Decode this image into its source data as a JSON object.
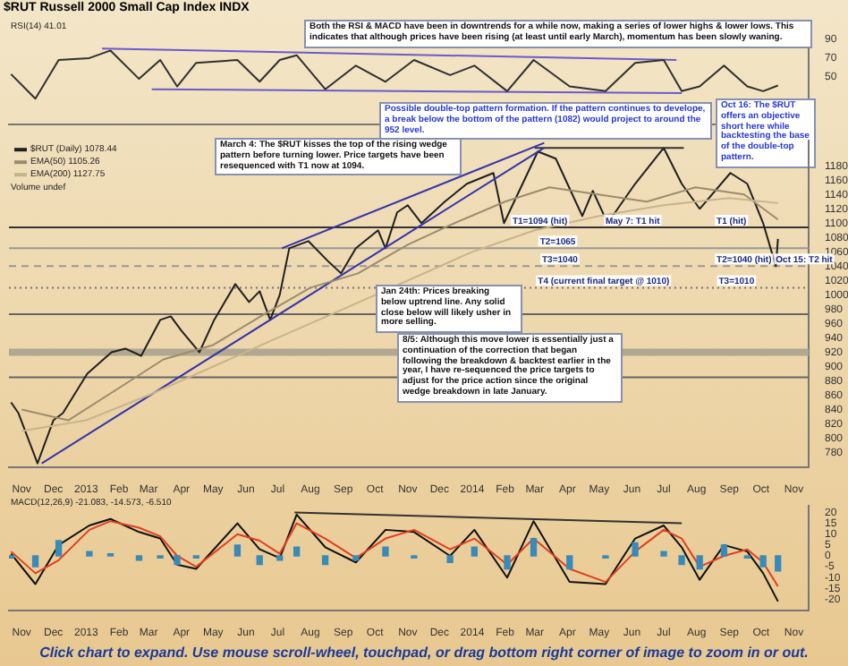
{
  "chart_data": [
    {
      "type": "line",
      "title": "$RUT Russell 2000 Small Cap Index INDX",
      "xlim": [
        "2012-10-20",
        "2014-11-15"
      ],
      "ylim": [
        0,
        100
      ],
      "yticks": [
        90,
        70,
        50
      ],
      "tick_labels": "y",
      "x": [
        "2012-10-22",
        "2012-11-14",
        "2012-12-06",
        "2013-01-04",
        "2013-01-24",
        "2013-02-20",
        "2013-03-12",
        "2013-03-28",
        "2013-04-15",
        "2013-05-24",
        "2013-06-14",
        "2013-07-03",
        "2013-07-19",
        "2013-08-15",
        "2013-09-13",
        "2013-10-11",
        "2013-11-07",
        "2013-12-11",
        "2014-01-03",
        "2014-02-03",
        "2014-02-28",
        "2014-04-03",
        "2014-05-07",
        "2014-06-04",
        "2014-07-01",
        "2014-07-18",
        "2014-08-04",
        "2014-08-27",
        "2014-09-18",
        "2014-10-03",
        "2014-10-17"
      ],
      "series": [
        {
          "color": "#303030",
          "values": [
            53,
            27,
            68,
            70,
            78,
            48,
            68,
            40,
            65,
            68,
            45,
            68,
            73,
            37,
            62,
            45,
            68,
            52,
            62,
            35,
            68,
            40,
            35,
            65,
            68,
            35,
            40,
            62,
            40,
            35,
            41
          ]
        },
        {
          "color": "#6a5acd",
          "x": [
            "2013-01-16",
            "2014-07-13"
          ],
          "values": [
            80,
            68
          ]
        },
        {
          "color": "#6a5acd",
          "x": [
            "2013-03-04",
            "2014-07-18"
          ],
          "values": [
            37,
            33
          ]
        }
      ],
      "annotations": [
        "RSI(14) 41.01",
        "Both the RSI & MACD have been in downtrends for a while now, making a series of lower highs & lower lows. This indicates that although prices have been rising (at least until early March), momentum has been slowly waning.",
        "Possible double-top pattern formation. If the pattern continues to develope, a break below the bottom of the pattern (1082) would project to around the 952 level.",
        "Oct 16: The $RUT offers an objective short here while backtesting the base of the double-top pattern."
      ]
    },
    {
      "type": "line",
      "xlim": [
        "2012-10-20",
        "2014-11-15"
      ],
      "ylim": [
        760,
        1215
      ],
      "yticks": [
        780,
        800,
        820,
        840,
        860,
        880,
        900,
        920,
        940,
        960,
        980,
        1000,
        1020,
        1040,
        1060,
        1080,
        1100,
        1120,
        1140,
        1160,
        1180
      ],
      "xticks": [
        {
          "value": "2012-11-01",
          "label": "Nov"
        },
        {
          "value": "2012-12-01",
          "label": "Dec"
        },
        {
          "value": "2013-01-01",
          "label": "2013"
        },
        {
          "value": "2013-02-01",
          "label": "Feb"
        },
        {
          "value": "2013-03-01",
          "label": "Mar"
        },
        {
          "value": "2013-04-01",
          "label": "Apr"
        },
        {
          "value": "2013-05-01",
          "label": "May"
        },
        {
          "value": "2013-06-01",
          "label": "Jun"
        },
        {
          "value": "2013-07-01",
          "label": "Jul"
        },
        {
          "value": "2013-08-01",
          "label": "Aug"
        },
        {
          "value": "2013-09-01",
          "label": "Sep"
        },
        {
          "value": "2013-10-01",
          "label": "Oct"
        },
        {
          "value": "2013-11-01",
          "label": "Nov"
        },
        {
          "value": "2013-12-01",
          "label": "Dec"
        },
        {
          "value": "2014-01-01",
          "label": "2014"
        },
        {
          "value": "2014-02-01",
          "label": "Feb"
        },
        {
          "value": "2014-03-01",
          "label": "Mar"
        },
        {
          "value": "2014-04-01",
          "label": "Apr"
        },
        {
          "value": "2014-05-01",
          "label": "May"
        },
        {
          "value": "2014-06-01",
          "label": "Jun"
        },
        {
          "value": "2014-07-01",
          "label": "Jul"
        },
        {
          "value": "2014-08-01",
          "label": "Aug"
        },
        {
          "value": "2014-09-01",
          "label": "Sep"
        },
        {
          "value": "2014-10-01",
          "label": "Oct"
        },
        {
          "value": "2014-11-01",
          "label": "Nov"
        }
      ],
      "legend": "top left",
      "series": [
        {
          "name": "EMA(200) 1127.75",
          "color": "#c8b48c",
          "x": [
            "2012-11-01",
            "2013-01-01",
            "2013-03-01",
            "2013-05-01",
            "2013-07-01",
            "2013-09-01",
            "2013-11-01",
            "2014-01-01",
            "2014-03-01",
            "2014-05-01",
            "2014-07-01",
            "2014-09-01",
            "2014-10-17"
          ],
          "values": [
            810,
            825,
            860,
            900,
            940,
            980,
            1020,
            1060,
            1090,
            1110,
            1125,
            1135,
            1128
          ]
        },
        {
          "name": "EMA(50) 1105.26",
          "color": "#9c8c6c",
          "x": [
            "2012-11-01",
            "2012-12-15",
            "2013-02-01",
            "2013-03-15",
            "2013-05-01",
            "2013-06-15",
            "2013-08-01",
            "2013-09-15",
            "2013-11-01",
            "2013-12-15",
            "2014-02-01",
            "2014-03-15",
            "2014-04-30",
            "2014-06-15",
            "2014-07-31",
            "2014-09-15",
            "2014-10-17"
          ],
          "values": [
            840,
            825,
            870,
            910,
            930,
            970,
            1010,
            1030,
            1070,
            1100,
            1130,
            1150,
            1140,
            1130,
            1150,
            1140,
            1105
          ]
        },
        {
          "color": "#3333aa",
          "x": [
            "2013-07-05",
            "2014-03-10"
          ],
          "values": [
            1065,
            1212
          ]
        },
        {
          "color": "#3333aa",
          "x": [
            "2012-11-20",
            "2014-03-10"
          ],
          "values": [
            765,
            1205
          ]
        },
        {
          "color": "#333333",
          "x": [
            "2014-03-01",
            "2014-07-20"
          ],
          "values": [
            1205,
            1205
          ]
        },
        {
          "name": "$RUT (Daily) 1078.44",
          "color": "#202020",
          "x": [
            "2012-10-22",
            "2012-10-29",
            "2012-11-16",
            "2012-12-01",
            "2012-12-10",
            "2013-01-02",
            "2013-01-25",
            "2013-02-07",
            "2013-02-22",
            "2013-03-12",
            "2013-03-22",
            "2013-04-01",
            "2013-04-18",
            "2013-05-02",
            "2013-05-22",
            "2013-06-04",
            "2013-06-14",
            "2013-06-24",
            "2013-07-03",
            "2013-07-12",
            "2013-07-30",
            "2013-08-19",
            "2013-08-30",
            "2013-09-13",
            "2013-10-04",
            "2013-10-11",
            "2013-10-22",
            "2013-11-01",
            "2013-11-14",
            "2013-12-06",
            "2013-12-27",
            "2014-01-21",
            "2014-01-31",
            "2014-03-04",
            "2014-03-21",
            "2014-04-15",
            "2014-04-25",
            "2014-05-09",
            "2014-06-04",
            "2014-07-01",
            "2014-07-18",
            "2014-08-04",
            "2014-09-02",
            "2014-09-18",
            "2014-10-03",
            "2014-10-13",
            "2014-10-15",
            "2014-10-17"
          ],
          "values": [
            850,
            835,
            765,
            825,
            835,
            890,
            920,
            925,
            915,
            965,
            970,
            950,
            920,
            965,
            1015,
            990,
            1005,
            965,
            1000,
            1065,
            1075,
            1045,
            1030,
            1065,
            1090,
            1065,
            1115,
            1125,
            1100,
            1130,
            1155,
            1170,
            1100,
            1200,
            1190,
            1110,
            1145,
            1100,
            1155,
            1205,
            1155,
            1120,
            1170,
            1155,
            1100,
            1050,
            1040,
            1078
          ]
        }
      ],
      "ref_lines": [
        {
          "axis": "y",
          "value": 1094,
          "color": "#333333"
        },
        {
          "axis": "y",
          "value": 1065,
          "color": "#999999"
        },
        {
          "axis": "y",
          "value": 1040,
          "color": "#999999",
          "line_style": "dashed"
        },
        {
          "axis": "y",
          "value": 1010,
          "color": "#777777",
          "line_style": "dotted"
        },
        {
          "axis": "y",
          "value": 973,
          "color": "#666666"
        },
        {
          "axis": "y",
          "value": 885,
          "color": "#666666"
        }
      ],
      "bands": [
        {
          "axis": "y",
          "from": 915,
          "to": 925,
          "color": "#b0a890"
        }
      ],
      "annotations": [
        "Volume undef",
        "March 4: The $RUT kisses the top of the rising wedge pattern before turning lower. Price targets have been resequenced with T1 now at 1094.",
        "Jan 24th: Prices breaking below uptrend line. Any solid close below will likely usher in more selling.",
        "8/5: Although this move lower is essentially just a continuation of the correction that began following the breakdown & backtest earlier in the year, I have re-sequenced the price targets to adjust for the price action since the original wedge breakdown in late January.",
        {
          "text": "T1=1094 (hit)",
          "x": "2014-02-08",
          "y": 1094
        },
        {
          "text": "T2=1065",
          "x": "2014-03-06",
          "y": 1065
        },
        {
          "text": "T3=1040",
          "x": "2014-03-08",
          "y": 1040
        },
        {
          "text": "T4 (current final target @ 1010)",
          "x": "2014-03-04",
          "y": 1010
        },
        {
          "text": "May 7: T1 hit",
          "x": "2014-05-07",
          "y": 1094
        },
        {
          "text": "T1 (hit)",
          "x": "2014-08-20",
          "y": 1094
        },
        {
          "text": "T2=1040 (hit)",
          "x": "2014-08-20",
          "y": 1040
        },
        {
          "text": "T3=1010",
          "x": "2014-08-22",
          "y": 1010
        },
        {
          "text": "Oct 15: T2 hit",
          "x": "2014-10-15",
          "y": 1040
        }
      ]
    },
    {
      "type": "line",
      "xlim": [
        "2012-10-20",
        "2014-11-15"
      ],
      "ylim": [
        -25,
        23
      ],
      "yticks": [
        20,
        15,
        10,
        5,
        0,
        -5,
        -10,
        -15,
        -20
      ],
      "xticks": [
        {
          "value": "2012-11-01",
          "label": "Nov"
        },
        {
          "value": "2012-12-01",
          "label": "Dec"
        },
        {
          "value": "2013-01-01",
          "label": "2013"
        },
        {
          "value": "2013-02-01",
          "label": "Feb"
        },
        {
          "value": "2013-03-01",
          "label": "Mar"
        },
        {
          "value": "2013-04-01",
          "label": "Apr"
        },
        {
          "value": "2013-05-01",
          "label": "May"
        },
        {
          "value": "2013-06-01",
          "label": "Jun"
        },
        {
          "value": "2013-07-01",
          "label": "Jul"
        },
        {
          "value": "2013-08-01",
          "label": "Aug"
        },
        {
          "value": "2013-09-01",
          "label": "Sep"
        },
        {
          "value": "2013-10-01",
          "label": "Oct"
        },
        {
          "value": "2013-11-01",
          "label": "Nov"
        },
        {
          "value": "2013-12-01",
          "label": "Dec"
        },
        {
          "value": "2014-01-01",
          "label": "2014"
        },
        {
          "value": "2014-02-01",
          "label": "Feb"
        },
        {
          "value": "2014-03-01",
          "label": "Mar"
        },
        {
          "value": "2014-04-01",
          "label": "Apr"
        },
        {
          "value": "2014-05-01",
          "label": "May"
        },
        {
          "value": "2014-06-01",
          "label": "Jun"
        },
        {
          "value": "2014-07-01",
          "label": "Jul"
        },
        {
          "value": "2014-08-01",
          "label": "Aug"
        },
        {
          "value": "2014-09-01",
          "label": "Sep"
        },
        {
          "value": "2014-10-01",
          "label": "Oct"
        },
        {
          "value": "2014-11-01",
          "label": "Nov"
        }
      ],
      "x": [
        "2012-10-22",
        "2012-11-14",
        "2012-12-06",
        "2013-01-04",
        "2013-01-24",
        "2013-02-20",
        "2013-03-12",
        "2013-03-28",
        "2013-04-15",
        "2013-05-24",
        "2013-06-14",
        "2013-07-03",
        "2013-07-19",
        "2013-08-15",
        "2013-09-13",
        "2013-10-11",
        "2013-11-07",
        "2013-12-11",
        "2014-01-03",
        "2014-02-03",
        "2014-02-28",
        "2014-04-03",
        "2014-05-07",
        "2014-06-04",
        "2014-07-01",
        "2014-07-18",
        "2014-08-04",
        "2014-08-27",
        "2014-09-18",
        "2014-10-03",
        "2014-10-17"
      ],
      "series": [
        {
          "type": "bar",
          "color": "#3a8ab8",
          "values": [
            -1,
            -5,
            7,
            2,
            1,
            -2,
            -1,
            -4,
            -1,
            5,
            -4,
            -2,
            4,
            -4,
            -2,
            4,
            -1,
            -3,
            4,
            -6,
            8,
            -6,
            -1,
            6,
            2,
            -4,
            -6,
            5,
            -1,
            -5,
            -7
          ]
        },
        {
          "color": "#e04020",
          "values": [
            2,
            -8,
            -2,
            12,
            16,
            13,
            9,
            0,
            -5,
            10,
            7,
            1,
            15,
            8,
            -1,
            8,
            12,
            3,
            8,
            -4,
            8,
            -6,
            -12,
            2,
            12,
            8,
            -5,
            0,
            3,
            -3,
            -14
          ]
        },
        {
          "color": "#111111",
          "values": [
            1,
            -13,
            5,
            14,
            17,
            11,
            8,
            -4,
            -6,
            15,
            3,
            -1,
            19,
            4,
            -3,
            12,
            11,
            0,
            12,
            -10,
            16,
            -12,
            -13,
            8,
            14,
            4,
            -11,
            5,
            2,
            -8,
            -21
          ]
        },
        {
          "color": "#333333",
          "x": [
            "2013-07-17",
            "2014-07-18"
          ],
          "values": [
            20,
            15
          ]
        }
      ],
      "annotations": [
        "MACD(12,26,9) -21.083, -14.573, -6.510",
        "Click chart to expand. Use mouse scroll-wheel, touchpad, or drag bottom right corner of image to zoom in or out."
      ]
    }
  ]
}
